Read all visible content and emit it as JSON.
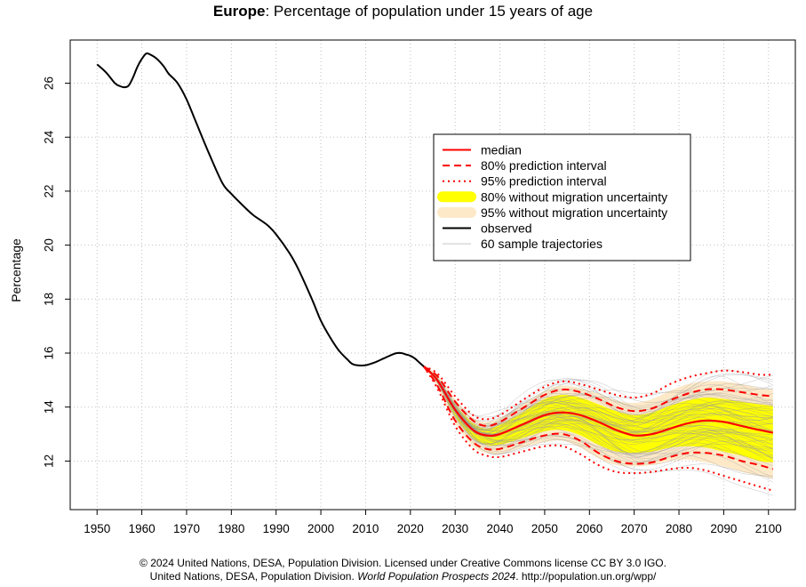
{
  "title": {
    "region": "Europe",
    "text": ": Percentage of population under 15 years of age"
  },
  "footer": {
    "line1": "© 2024 United Nations, DESA, Population Division. Licensed under Creative Commons license CC BY 3.0 IGO.",
    "line2_prefix": "United Nations, DESA, Population Division. ",
    "line2_italic": "World Population Prospects 2024",
    "line2_suffix": ". http://population.un.org/wpp/"
  },
  "colors": {
    "observed": "#000000",
    "median": "#ff0000",
    "pi80": "#ff0000",
    "pi95": "#ff0000",
    "band80": "#ffff00",
    "band95": "#fde9c8",
    "trajectories": "#9a9a9a",
    "grid": "#c0c0c0"
  },
  "chart_data": {
    "type": "line",
    "title": "Europe: Percentage of population under 15 years of age",
    "xlabel": "",
    "ylabel": "Percentage",
    "xlim": [
      1944,
      2106
    ],
    "ylim": [
      10.2,
      27.6
    ],
    "xticks": [
      1950,
      1960,
      1970,
      1980,
      1990,
      2000,
      2010,
      2020,
      2030,
      2040,
      2050,
      2060,
      2070,
      2080,
      2090,
      2100
    ],
    "yticks": [
      12,
      14,
      16,
      18,
      20,
      22,
      24,
      26
    ],
    "grid": true,
    "legend_position": "top-right",
    "legend": [
      {
        "label": "median",
        "style": "median"
      },
      {
        "label": "80% prediction interval",
        "style": "pi80"
      },
      {
        "label": "95% prediction interval",
        "style": "pi95"
      },
      {
        "label": "80% without migration uncertainty",
        "style": "band80"
      },
      {
        "label": "95% without migration uncertainty",
        "style": "band95"
      },
      {
        "label": "observed",
        "style": "observed"
      },
      {
        "label": "60 sample trajectories",
        "style": "trajectories"
      }
    ],
    "trajectory_count": 60,
    "observed": {
      "x": [
        1950,
        1952,
        1954,
        1955,
        1956,
        1957,
        1958,
        1959,
        1960,
        1961,
        1962,
        1963,
        1964,
        1965,
        1966,
        1968,
        1970,
        1972,
        1975,
        1978,
        1980,
        1983,
        1985,
        1988,
        1990,
        1993,
        1995,
        1998,
        2000,
        2002,
        2004,
        2006,
        2007,
        2008,
        2010,
        2012,
        2014,
        2016,
        2017,
        2018,
        2019,
        2020,
        2021,
        2022,
        2023
      ],
      "y": [
        26.7,
        26.4,
        26.0,
        25.9,
        25.85,
        25.9,
        26.2,
        26.6,
        26.9,
        27.1,
        27.05,
        26.95,
        26.8,
        26.6,
        26.35,
        26.0,
        25.4,
        24.6,
        23.4,
        22.3,
        21.9,
        21.4,
        21.1,
        20.75,
        20.4,
        19.7,
        19.1,
        18.0,
        17.2,
        16.6,
        16.1,
        15.75,
        15.6,
        15.55,
        15.55,
        15.65,
        15.8,
        15.95,
        16.0,
        16.0,
        15.95,
        15.9,
        15.8,
        15.65,
        15.5
      ]
    },
    "projection": {
      "x": [
        2023,
        2026,
        2030,
        2034,
        2037,
        2040,
        2045,
        2050,
        2054,
        2058,
        2062,
        2066,
        2070,
        2074,
        2078,
        2082,
        2086,
        2090,
        2094,
        2098,
        2101
      ],
      "median": [
        15.5,
        15.0,
        13.9,
        13.15,
        12.95,
        13.0,
        13.35,
        13.7,
        13.8,
        13.7,
        13.45,
        13.15,
        12.95,
        13.0,
        13.2,
        13.4,
        13.5,
        13.45,
        13.3,
        13.15,
        13.05
      ],
      "pi80_low": [
        15.5,
        14.8,
        13.5,
        12.7,
        12.45,
        12.45,
        12.7,
        12.95,
        13.0,
        12.75,
        12.3,
        12.0,
        11.9,
        11.95,
        12.15,
        12.3,
        12.3,
        12.2,
        12.0,
        11.85,
        11.7
      ],
      "pi80_high": [
        15.5,
        15.15,
        14.2,
        13.5,
        13.3,
        13.45,
        13.95,
        14.45,
        14.65,
        14.55,
        14.3,
        14.0,
        13.85,
        13.95,
        14.25,
        14.5,
        14.65,
        14.65,
        14.55,
        14.45,
        14.4
      ],
      "pi95_low": [
        15.5,
        14.7,
        13.3,
        12.45,
        12.2,
        12.15,
        12.35,
        12.55,
        12.55,
        12.25,
        11.85,
        11.6,
        11.55,
        11.6,
        11.7,
        11.75,
        11.65,
        11.45,
        11.25,
        11.05,
        10.9
      ],
      "pi95_high": [
        15.5,
        15.25,
        14.4,
        13.7,
        13.55,
        13.7,
        14.25,
        14.75,
        14.95,
        14.85,
        14.65,
        14.45,
        14.35,
        14.5,
        14.85,
        15.1,
        15.25,
        15.35,
        15.3,
        15.2,
        15.2
      ],
      "band80_low": [
        15.5,
        14.9,
        13.65,
        12.85,
        12.6,
        12.6,
        12.85,
        13.1,
        13.15,
        12.95,
        12.6,
        12.35,
        12.3,
        12.35,
        12.5,
        12.55,
        12.5,
        12.35,
        12.2,
        12.0,
        11.95
      ],
      "band80_high": [
        15.5,
        15.1,
        14.1,
        13.4,
        13.2,
        13.35,
        13.8,
        14.3,
        14.45,
        14.35,
        14.1,
        13.85,
        13.7,
        13.8,
        14.05,
        14.25,
        14.35,
        14.3,
        14.2,
        14.1,
        14.05
      ],
      "band95_low": [
        15.5,
        14.75,
        13.4,
        12.55,
        12.3,
        12.25,
        12.5,
        12.7,
        12.75,
        12.5,
        12.1,
        11.85,
        11.8,
        11.85,
        12.0,
        12.05,
        11.95,
        11.8,
        11.6,
        11.45,
        11.35
      ],
      "band95_high": [
        15.5,
        15.2,
        14.3,
        13.6,
        13.45,
        13.6,
        14.1,
        14.6,
        14.8,
        14.7,
        14.5,
        14.25,
        14.15,
        14.3,
        14.6,
        14.85,
        14.95,
        14.95,
        14.85,
        14.7,
        14.65
      ]
    }
  }
}
